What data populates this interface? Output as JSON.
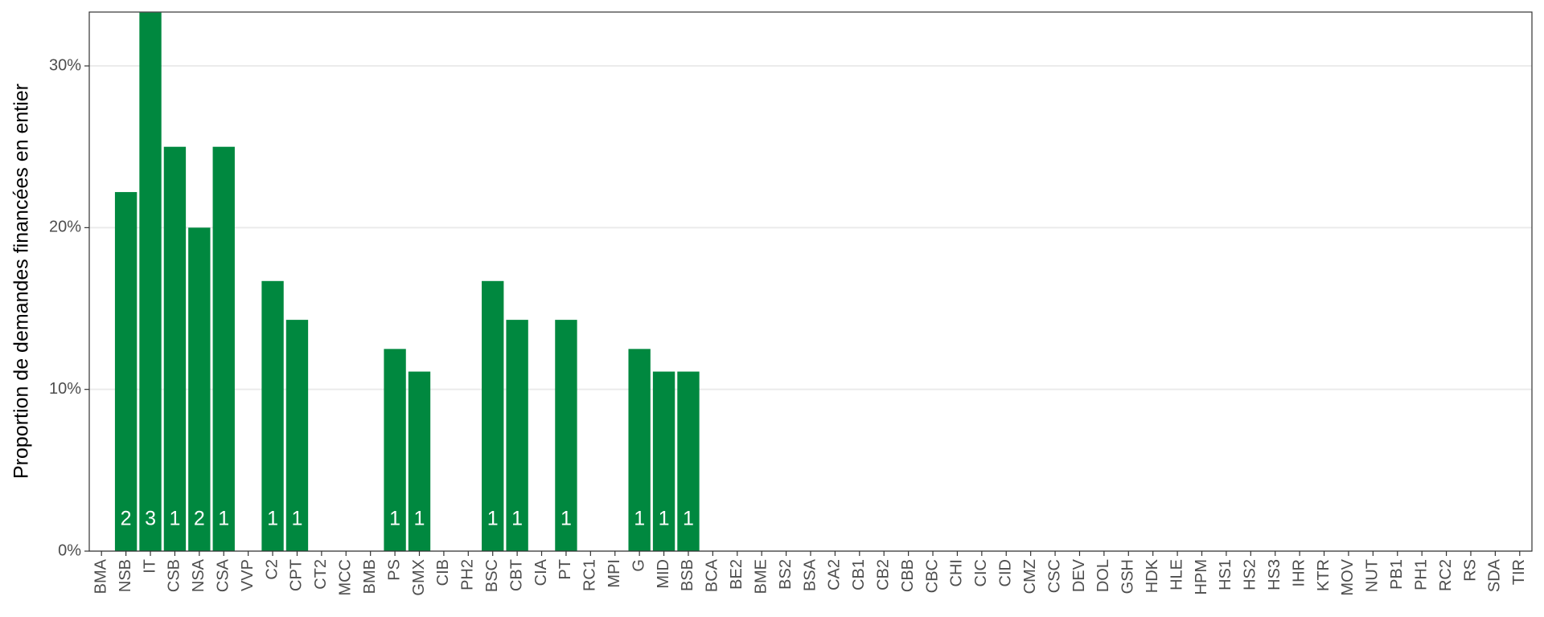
{
  "chart_data": {
    "type": "bar",
    "y_label": "Proportion de demandes financées en entier",
    "categories": [
      "BMA",
      "NSB",
      "IT",
      "CSB",
      "NSA",
      "CSA",
      "VVP",
      "C2",
      "CPT",
      "CT2",
      "MCC",
      "BMB",
      "PS",
      "GMX",
      "CIB",
      "PH2",
      "BSC",
      "CBT",
      "CIA",
      "PT",
      "RC1",
      "MPI",
      "G",
      "MID",
      "BSB",
      "BCA",
      "BE2",
      "BME",
      "BS2",
      "BSA",
      "CA2",
      "CB1",
      "CB2",
      "CBB",
      "CBC",
      "CHI",
      "CIC",
      "CID",
      "CMZ",
      "CSC",
      "DEV",
      "DOL",
      "GSH",
      "HDK",
      "HLE",
      "HPM",
      "HS1",
      "HS2",
      "HS3",
      "IHR",
      "KTR",
      "MOV",
      "NUT",
      "PB1",
      "PH1",
      "RC2",
      "RS",
      "SDA",
      "TIR"
    ],
    "values": [
      0,
      22.2,
      33.3,
      25,
      20,
      25,
      0,
      16.7,
      14.3,
      0,
      0,
      0,
      12.5,
      11.1,
      0,
      0,
      16.7,
      14.3,
      0,
      14.3,
      0,
      0,
      12.5,
      11.1,
      11.1,
      0,
      0,
      0,
      0,
      0,
      0,
      0,
      0,
      0,
      0,
      0,
      0,
      0,
      0,
      0,
      0,
      0,
      0,
      0,
      0,
      0,
      0,
      0,
      0,
      0,
      0,
      0,
      0,
      0,
      0,
      0,
      0,
      0,
      0
    ],
    "counts": [
      null,
      2,
      3,
      1,
      2,
      1,
      null,
      1,
      1,
      null,
      null,
      null,
      1,
      1,
      null,
      null,
      1,
      1,
      null,
      1,
      null,
      null,
      1,
      1,
      1,
      null,
      null,
      null,
      null,
      null,
      null,
      null,
      null,
      null,
      null,
      null,
      null,
      null,
      null,
      null,
      null,
      null,
      null,
      null,
      null,
      null,
      null,
      null,
      null,
      null,
      null,
      null,
      null,
      null,
      null,
      null,
      null,
      null,
      null
    ],
    "color": "#00883f",
    "ylim": [
      0,
      33.33
    ],
    "yticks": [
      {
        "value": 0,
        "label": "0%"
      },
      {
        "value": 10,
        "label": "10%"
      },
      {
        "value": 20,
        "label": "20%"
      },
      {
        "value": 30,
        "label": "30%"
      }
    ],
    "grid": true
  }
}
